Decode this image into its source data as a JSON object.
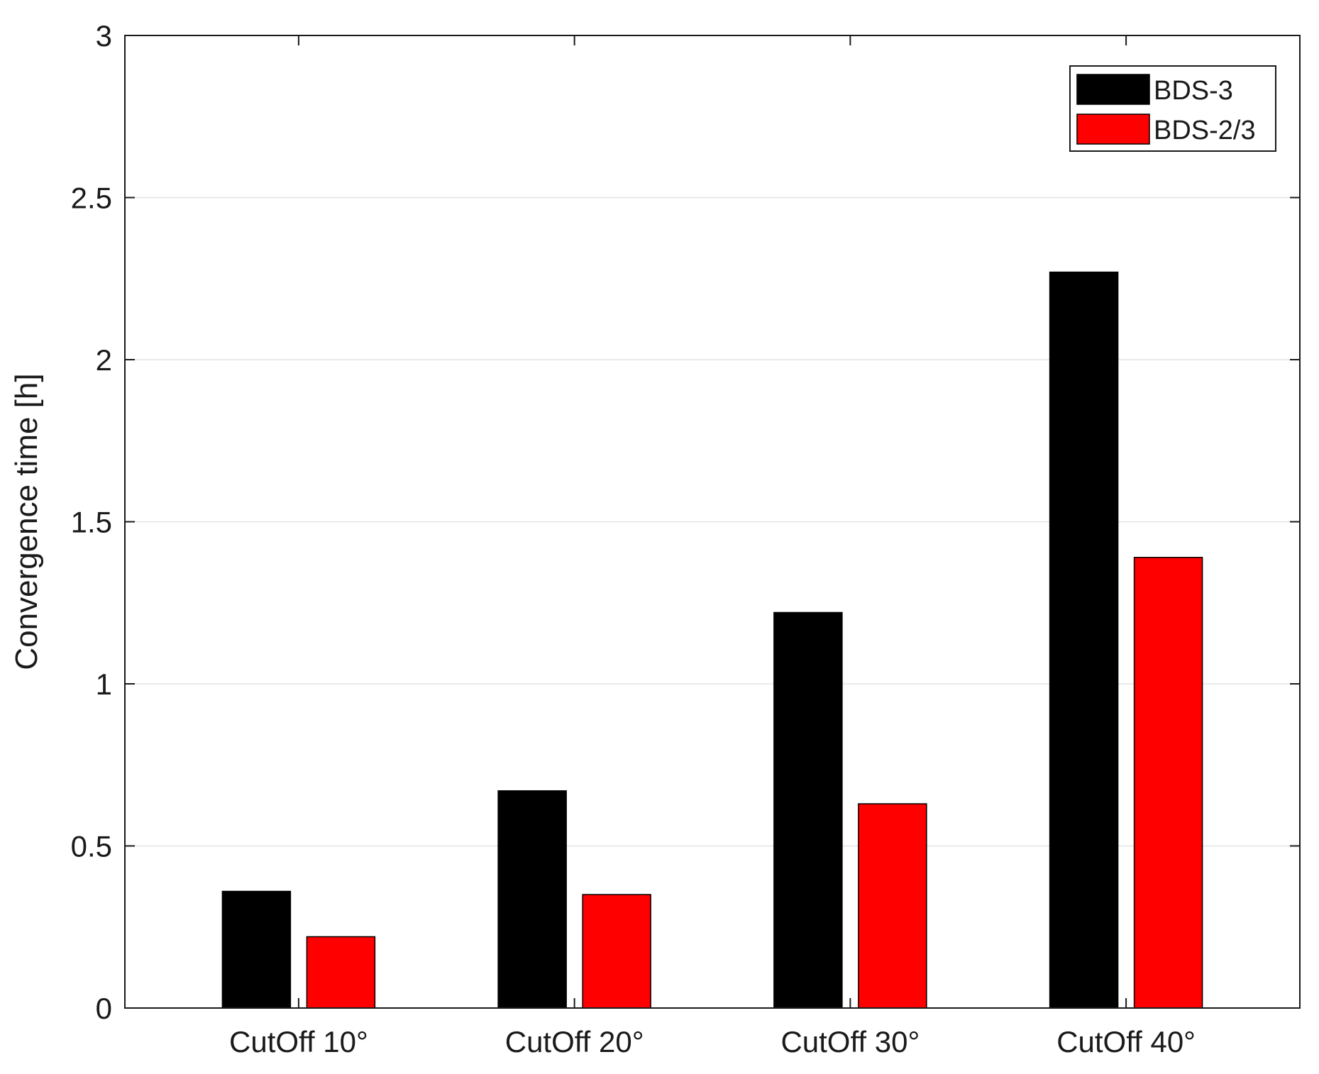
{
  "chart_data": {
    "type": "bar",
    "title": "",
    "xlabel": "",
    "ylabel": "Convergence time [h]",
    "ylim": [
      0,
      3
    ],
    "yticks": [
      0,
      0.5,
      1,
      1.5,
      2,
      2.5,
      3
    ],
    "ytick_labels": [
      "0",
      "0.5",
      "1",
      "1.5",
      "2",
      "2.5",
      "3"
    ],
    "categories": [
      "CutOff 10°",
      "CutOff 20°",
      "CutOff 30°",
      "CutOff 40°"
    ],
    "series": [
      {
        "name": "BDS-3",
        "color": "#000000",
        "values": [
          0.36,
          0.67,
          1.22,
          2.27
        ]
      },
      {
        "name": "BDS-2/3",
        "color": "#ff0000",
        "values": [
          0.22,
          0.35,
          0.63,
          1.39
        ]
      }
    ],
    "grid": "horizontal",
    "legend_position": "top-right"
  }
}
